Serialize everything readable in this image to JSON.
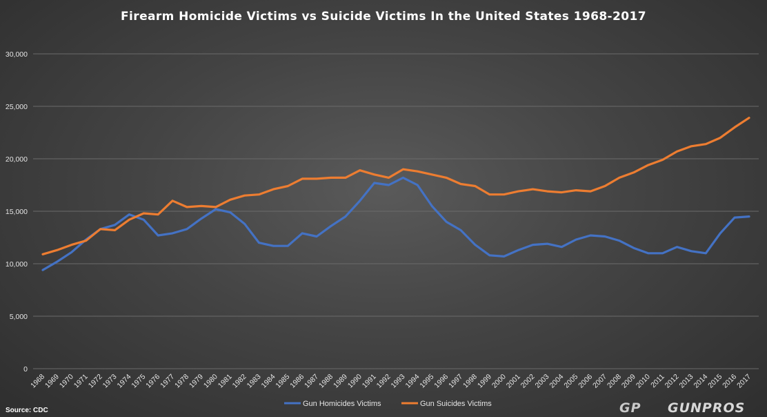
{
  "chart_data": {
    "type": "line",
    "title": "Firearm Homicide Victims vs Suicide Victims In the United States 1968-2017",
    "source": "Source: CDC",
    "ylim": [
      0,
      30000
    ],
    "yticks": [
      0,
      5000,
      10000,
      15000,
      20000,
      25000,
      30000
    ],
    "ytick_labels": [
      "0",
      "5,000",
      "10,000",
      "15,000",
      "20,000",
      "25,000",
      "30,000"
    ],
    "grid": true,
    "legend_position": "bottom",
    "categories": [
      "1968",
      "1969",
      "1970",
      "1971",
      "1972",
      "1973",
      "1974",
      "1975",
      "1976",
      "1977",
      "1978",
      "1979",
      "1980",
      "1981",
      "1982",
      "1983",
      "1984",
      "1985",
      "1986",
      "1987",
      "1988",
      "1989",
      "1990",
      "1991",
      "1992",
      "1993",
      "1994",
      "1995",
      "1996",
      "1997",
      "1998",
      "1999",
      "2000",
      "2001",
      "2002",
      "2003",
      "2004",
      "2005",
      "2006",
      "2007",
      "2008",
      "2009",
      "2010",
      "2011",
      "2012",
      "2013",
      "2014",
      "2015",
      "2016",
      "2017"
    ],
    "series": [
      {
        "name": "Gun Homicides Victims",
        "color": "#4472c4",
        "values": [
          9400,
          10200,
          11100,
          12300,
          13300,
          13700,
          14700,
          14200,
          12700,
          12900,
          13300,
          14300,
          15200,
          14900,
          13800,
          12000,
          11700,
          11700,
          12900,
          12600,
          13600,
          14500,
          16000,
          17700,
          17500,
          18200,
          17500,
          15500,
          14000,
          13200,
          11800,
          10800,
          10700,
          11300,
          11800,
          11900,
          11600,
          12300,
          12700,
          12600,
          12200,
          11500,
          11000,
          11000,
          11600,
          11200,
          11000,
          12900,
          14400,
          14500
        ]
      },
      {
        "name": "Gun Suicides Victims",
        "color": "#ed7d31",
        "values": [
          10900,
          11300,
          11800,
          12200,
          13300,
          13200,
          14200,
          14800,
          14700,
          16000,
          15400,
          15500,
          15400,
          16100,
          16500,
          16600,
          17100,
          17400,
          18100,
          18100,
          18200,
          18200,
          18900,
          18500,
          18200,
          19000,
          18800,
          18500,
          18200,
          17600,
          17400,
          16600,
          16600,
          16900,
          17100,
          16900,
          16800,
          17000,
          16900,
          17400,
          18200,
          18700,
          19400,
          19900,
          20700,
          21200,
          21400,
          22000,
          23000,
          23900
        ]
      }
    ]
  },
  "logo": {
    "mark": "GP",
    "text": "GUNPROS"
  }
}
